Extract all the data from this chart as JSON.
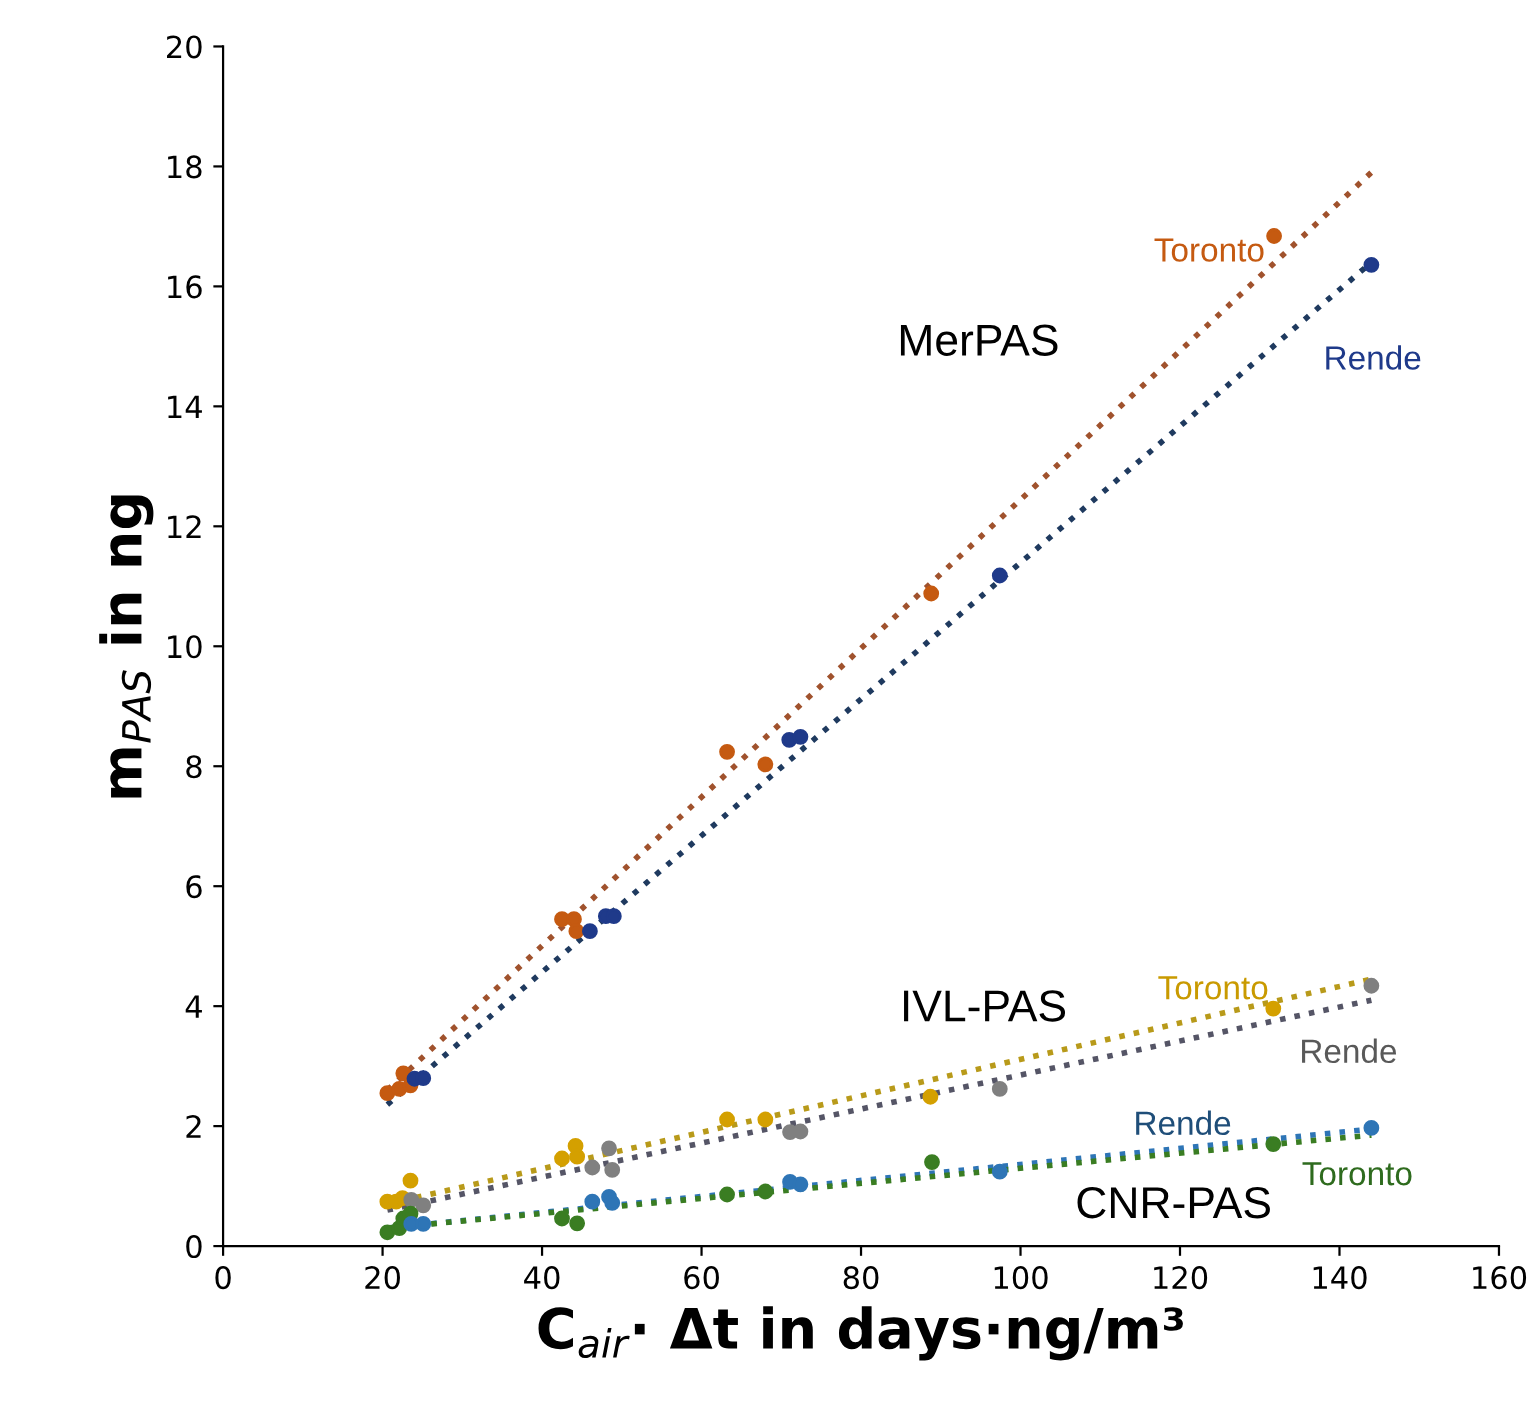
{
  "chart_data": {
    "type": "scatter",
    "xlabel": "C$_{air}$· Δt in days·ng/m³",
    "ylabel": "m$_{PAS}$ in ng",
    "xlim": [
      0,
      160
    ],
    "xticks": [
      0,
      20,
      40,
      60,
      80,
      100,
      120,
      140,
      160
    ],
    "ylim": [
      0,
      20
    ],
    "yticks": [
      0,
      2,
      4,
      6,
      8,
      10,
      12,
      14,
      16,
      18,
      20
    ],
    "grid": false,
    "legend": false,
    "marker": "circle",
    "series": [
      {
        "color": "#c55a11",
        "x": [
          20.6,
          22.1,
          22.6,
          23.5,
          42.5,
          44,
          44.3,
          63.2,
          68,
          88.8,
          131.8
        ],
        "values": [
          2.55,
          2.62,
          2.88,
          2.68,
          5.45,
          5.45,
          5.25,
          8.24,
          8.03,
          10.88,
          16.84
        ]
      },
      {
        "color": "#1f3a8a",
        "x": [
          24,
          25.1,
          46,
          48,
          49,
          71,
          72.4,
          97.4,
          144
        ],
        "values": [
          2.79,
          2.8,
          5.25,
          5.5,
          5.5,
          8.44,
          8.49,
          11.18,
          16.36
        ]
      },
      {
        "color": "#d4a000",
        "x": [
          20.6,
          21.7,
          22.5,
          23.5,
          42.5,
          44.2,
          44.4,
          63.2,
          68,
          88.7,
          131.7
        ],
        "values": [
          0.74,
          0.74,
          0.8,
          1.09,
          1.46,
          1.67,
          1.49,
          2.11,
          2.11,
          2.49,
          3.96
        ]
      },
      {
        "color": "#808080",
        "x": [
          23.6,
          25.1,
          46.3,
          48.4,
          48.8,
          71.1,
          72.4,
          97.4,
          144
        ],
        "values": [
          0.77,
          0.68,
          1.31,
          1.63,
          1.27,
          1.9,
          1.91,
          2.62,
          4.34
        ]
      },
      {
        "color": "#3a7d22",
        "x": [
          20.6,
          22.1,
          22.6,
          23.5,
          42.5,
          44.4,
          63.2,
          68,
          88.9,
          131.7
        ],
        "values": [
          0.23,
          0.3,
          0.46,
          0.54,
          0.46,
          0.38,
          0.86,
          0.91,
          1.4,
          1.7
        ]
      },
      {
        "color": "#2e75b6",
        "x": [
          23.6,
          25.1,
          46.3,
          48.4,
          48.8,
          71.1,
          72.4,
          97.4,
          144
        ],
        "values": [
          0.37,
          0.37,
          0.74,
          0.82,
          0.72,
          1.07,
          1.03,
          1.24,
          1.97
        ]
      },
      {
        "type": "line",
        "line_style": "dotted",
        "marker": "none",
        "color": "#a0522d",
        "x": [
          20.6,
          144
        ],
        "values": [
          2.6,
          17.9
        ]
      },
      {
        "type": "line",
        "line_style": "dotted",
        "marker": "none",
        "color": "#1f3a5f",
        "x": [
          20.6,
          144
        ],
        "values": [
          2.36,
          16.4
        ]
      },
      {
        "type": "line",
        "line_style": "dotted",
        "marker": "none",
        "color": "#b89a1a",
        "x": [
          20.6,
          144
        ],
        "values": [
          0.7,
          4.45
        ]
      },
      {
        "type": "line",
        "line_style": "dotted",
        "marker": "none",
        "color": "#555566",
        "x": [
          20.6,
          144
        ],
        "values": [
          0.6,
          4.1
        ]
      },
      {
        "type": "line",
        "line_style": "dotted",
        "marker": "none",
        "color": "#2e75b6",
        "x": [
          20.6,
          144
        ],
        "values": [
          0.3,
          1.95
        ]
      },
      {
        "type": "line",
        "line_style": "dotted",
        "marker": "none",
        "color": "#3a7d22",
        "x": [
          20.6,
          144
        ],
        "values": [
          0.3,
          1.85
        ]
      }
    ],
    "annotations": [
      "Toronto",
      "Rende",
      "MerPAS",
      "Toronto",
      "Rende",
      "IVL-PAS",
      "Rende",
      "Toronto",
      "CNR-PAS"
    ]
  }
}
